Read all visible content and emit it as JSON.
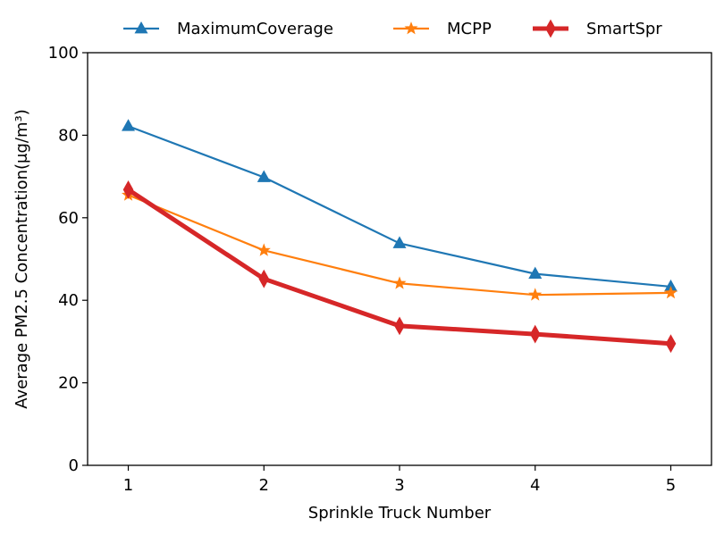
{
  "chart_data": {
    "type": "line",
    "x": [
      1,
      2,
      3,
      4,
      5
    ],
    "xticks": [
      "1",
      "2",
      "3",
      "4",
      "5"
    ],
    "yticks": [
      "0",
      "20",
      "40",
      "60",
      "80",
      "100"
    ],
    "xlabel": "Sprinkle Truck Number",
    "ylabel": "Average PM2.5 Concentration(μg/m³)",
    "xlim": [
      0.7,
      5.3
    ],
    "ylim": [
      0,
      100
    ],
    "grid": false,
    "legend_position": "top-center, above plot",
    "series": [
      {
        "name": "MaximumCoverage",
        "values": [
          82.2,
          69.8,
          53.8,
          46.4,
          43.3
        ],
        "color": "#1f77b4",
        "marker": "triangle",
        "line_width": "normal"
      },
      {
        "name": "MCPP",
        "values": [
          65.5,
          52.1,
          44.1,
          41.3,
          41.8
        ],
        "color": "#ff7f0e",
        "marker": "star",
        "line_width": "normal"
      },
      {
        "name": "SmartSpr",
        "values": [
          66.8,
          45.2,
          33.8,
          31.8,
          29.5
        ],
        "color": "#d62728",
        "marker": "thin-diamond",
        "line_width": "thick"
      }
    ]
  }
}
